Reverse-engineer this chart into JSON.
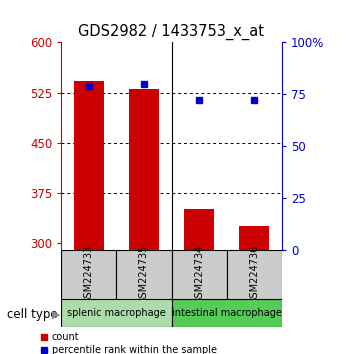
{
  "title": "GDS2982 / 1433753_x_at",
  "samples": [
    "GSM224733",
    "GSM224735",
    "GSM224734",
    "GSM224736"
  ],
  "count_values": [
    542,
    530,
    350,
    325
  ],
  "percentile_values": [
    79,
    80,
    72,
    72
  ],
  "ylim_left": [
    290,
    600
  ],
  "ylim_right": [
    0,
    100
  ],
  "yticks_left": [
    300,
    375,
    450,
    525,
    600
  ],
  "yticks_right": [
    0,
    25,
    50,
    75,
    100
  ],
  "ytick_labels_left": [
    "300",
    "375",
    "450",
    "525",
    "600"
  ],
  "ytick_labels_right": [
    "0",
    "25",
    "50",
    "75",
    "100%"
  ],
  "groups": [
    {
      "label": "splenic macrophage",
      "indices": [
        0,
        1
      ],
      "color": "#aaddaa"
    },
    {
      "label": "intestinal macrophage",
      "indices": [
        2,
        3
      ],
      "color": "#55cc55"
    }
  ],
  "bar_color": "#cc0000",
  "percentile_color": "#0000cc",
  "sample_box_color": "#cccccc",
  "cell_type_label": "cell type",
  "legend_count": "count",
  "legend_percentile": "percentile rank within the sample",
  "bar_width": 0.55,
  "base_value": 290,
  "group_divider": 1.5
}
